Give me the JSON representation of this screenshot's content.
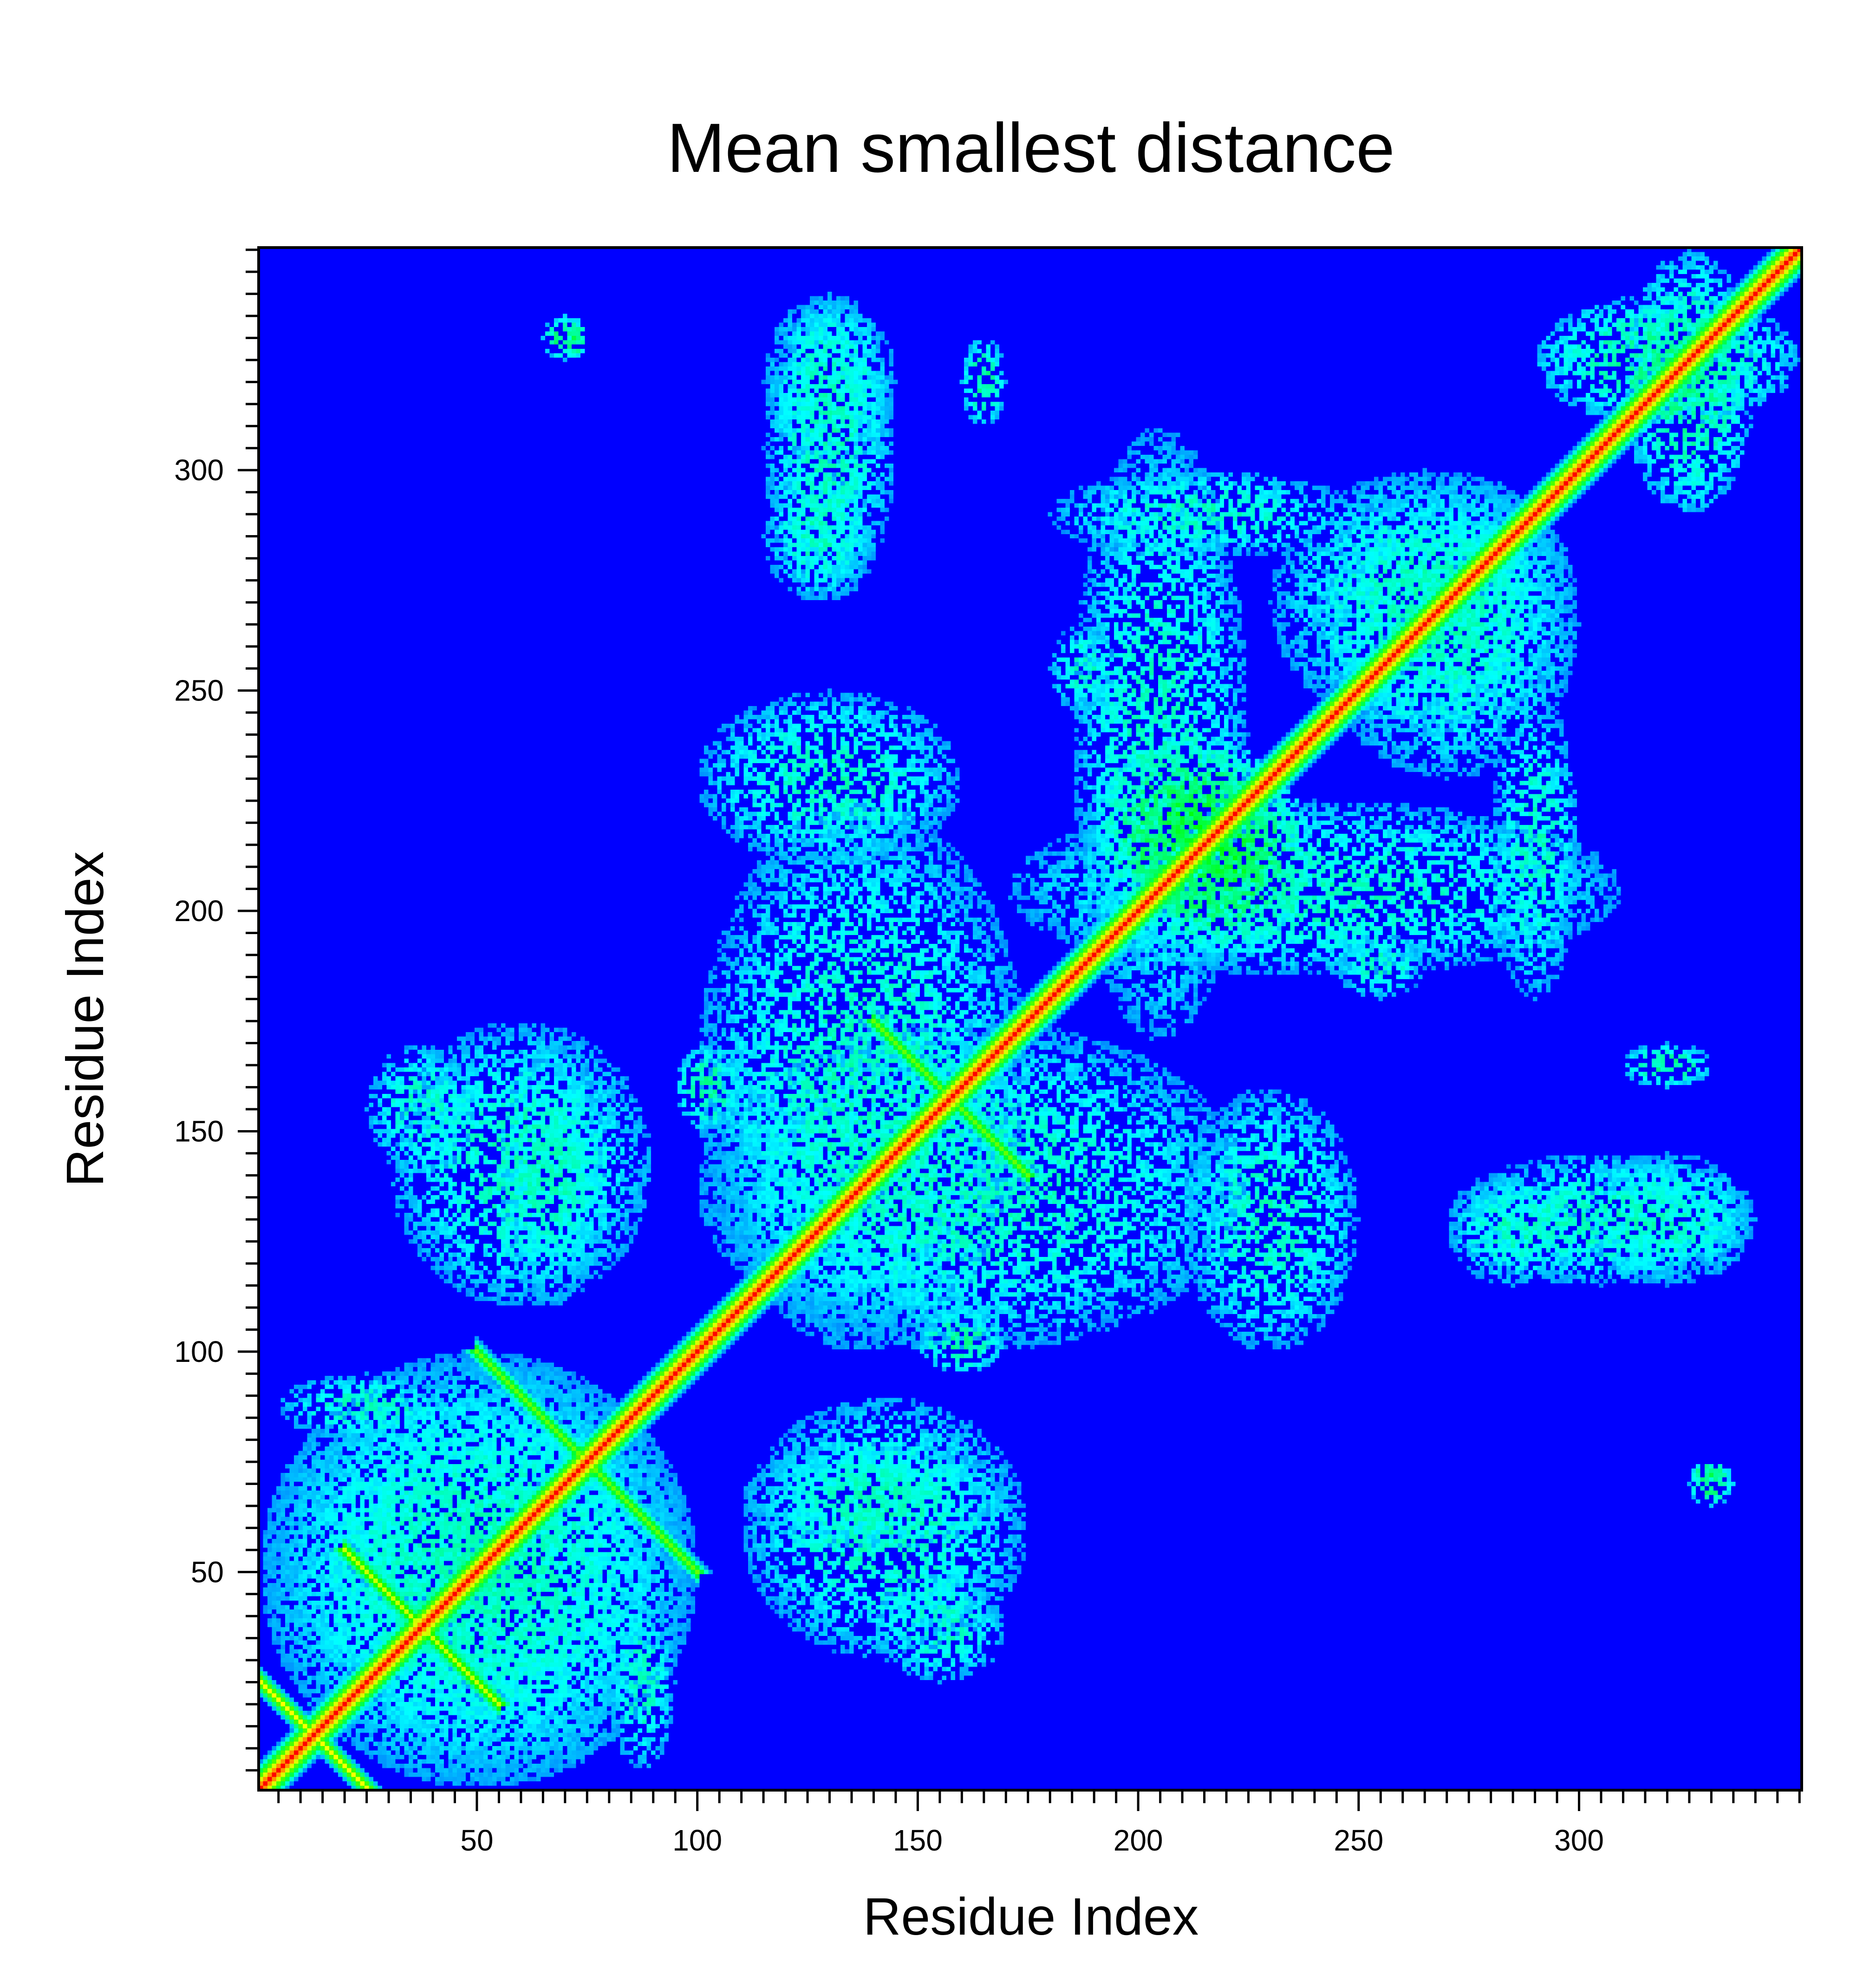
{
  "chart_data": {
    "type": "heatmap",
    "title": "Mean smallest distance",
    "xlabel": "Residue Index",
    "ylabel": "Residue Index",
    "xlim": [
      0.5,
      350.5
    ],
    "ylim": [
      0.5,
      350.5
    ],
    "n_residues": 350,
    "x_ticks": [
      50,
      100,
      150,
      200,
      250,
      300
    ],
    "y_ticks": [
      50,
      100,
      150,
      200,
      250,
      300
    ],
    "tick_labels_x": [
      "50",
      "100",
      "150",
      "200",
      "250",
      "300"
    ],
    "tick_labels_y": [
      "50",
      "100",
      "150",
      "200",
      "250",
      "300"
    ],
    "minor_tick_step": 5,
    "grid": false,
    "legend": "none",
    "colormap": [
      "#0000ff",
      "#00ffff",
      "#00ff00",
      "#ffff00",
      "#ff0000"
    ],
    "background_color": "#0000ff",
    "contact_regions": [
      {
        "x": [
          1,
          350
        ],
        "y": [
          1,
          350
        ],
        "kind": "diagonal",
        "level": 1.0
      },
      {
        "x": [
          1,
          25
        ],
        "y": [
          1,
          25
        ],
        "kind": "antidiagonal",
        "level": 0.75
      },
      {
        "x": [
          20,
          55
        ],
        "y": [
          20,
          55
        ],
        "kind": "antidiagonal",
        "level": 0.7
      },
      {
        "x": [
          50,
          100
        ],
        "y": [
          50,
          100
        ],
        "kind": "antidiagonal",
        "level": 0.6
      },
      {
        "x": [
          140,
          175
        ],
        "y": [
          140,
          175
        ],
        "kind": "antidiagonal",
        "level": 0.6
      },
      {
        "x": [
          195,
          240
        ],
        "y": [
          190,
          235
        ],
        "kind": "patch",
        "level": 0.5
      },
      {
        "x": [
          1,
          100
        ],
        "y": [
          1,
          100
        ],
        "kind": "patch",
        "level": 0.35
      },
      {
        "x": [
          30,
          90
        ],
        "y": [
          110,
          175
        ],
        "kind": "patch",
        "level": 0.35
      },
      {
        "x": [
          100,
          175
        ],
        "y": [
          100,
          225
        ],
        "kind": "patch",
        "level": 0.35
      },
      {
        "x": [
          115,
          145
        ],
        "y": [
          270,
          340
        ],
        "kind": "patch",
        "level": 0.35
      },
      {
        "x": [
          160,
          170
        ],
        "y": [
          310,
          330
        ],
        "kind": "patch",
        "level": 0.4
      },
      {
        "x": [
          70,
          75
        ],
        "y": [
          325,
          335
        ],
        "kind": "patch",
        "level": 0.45
      },
      {
        "x": [
          185,
          225
        ],
        "y": [
          170,
          310
        ],
        "kind": "patch",
        "level": 0.35
      },
      {
        "x": [
          210,
          250
        ],
        "y": [
          100,
          160
        ],
        "kind": "patch",
        "level": 0.35
      },
      {
        "x": [
          240,
          300
        ],
        "y": [
          230,
          300
        ],
        "kind": "patch",
        "level": 0.35
      },
      {
        "x": [
          280,
          300
        ],
        "y": [
          180,
          250
        ],
        "kind": "patch",
        "level": 0.35
      },
      {
        "x": [
          270,
          300
        ],
        "y": [
          115,
          140
        ],
        "kind": "patch",
        "level": 0.35
      },
      {
        "x": [
          300,
          340
        ],
        "y": [
          115,
          145
        ],
        "kind": "patch",
        "level": 0.35
      },
      {
        "x": [
          310,
          340
        ],
        "y": [
          290,
          350
        ],
        "kind": "patch",
        "level": 0.4
      },
      {
        "x": [
          110,
          170
        ],
        "y": [
          55,
          80
        ],
        "kind": "patch",
        "level": 0.35
      },
      {
        "x": [
          140,
          170
        ],
        "y": [
          25,
          50
        ],
        "kind": "patch",
        "level": 0.35
      },
      {
        "x": [
          150,
          170
        ],
        "y": [
          95,
          110
        ],
        "kind": "patch",
        "level": 0.4
      },
      {
        "x": [
          325,
          335
        ],
        "y": [
          65,
          75
        ],
        "kind": "patch",
        "level": 0.45
      },
      {
        "x": [
          80,
          95
        ],
        "y": [
          5,
          45
        ],
        "kind": "patch",
        "level": 0.35
      },
      {
        "x": [
          245,
          265
        ],
        "y": [
          180,
          195
        ],
        "kind": "patch",
        "level": 0.35
      }
    ]
  }
}
